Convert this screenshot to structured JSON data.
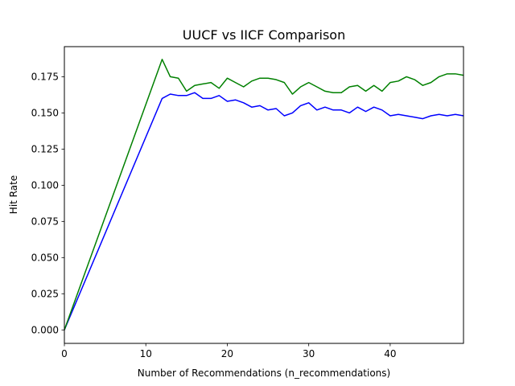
{
  "chart_data": {
    "type": "line",
    "title": "UUCF vs IICF Comparison",
    "xlabel": "Number of Recommendations (n_recommendations)",
    "ylabel": "Hit Rate",
    "xlim": [
      0,
      49
    ],
    "ylim": [
      -0.0093,
      0.1958
    ],
    "x_ticks": [
      0,
      10,
      20,
      30,
      40
    ],
    "x_tick_labels": [
      "0",
      "10",
      "20",
      "30",
      "40"
    ],
    "y_ticks": [
      0,
      0.025,
      0.05,
      0.075,
      0.1,
      0.125,
      0.15,
      0.175
    ],
    "y_tick_labels": [
      "0.000",
      "0.025",
      "0.050",
      "0.075",
      "0.100",
      "0.125",
      "0.150",
      "0.175"
    ],
    "grid": false,
    "legend": "none",
    "x": [
      0,
      12,
      13,
      14,
      15,
      16,
      17,
      18,
      19,
      20,
      21,
      22,
      23,
      24,
      25,
      26,
      27,
      28,
      29,
      30,
      31,
      32,
      33,
      34,
      35,
      36,
      37,
      38,
      39,
      40,
      41,
      42,
      43,
      44,
      45,
      46,
      47,
      48,
      49
    ],
    "series": [
      {
        "color": "#0000ff",
        "values": [
          0.0,
          0.16,
          0.163,
          0.162,
          0.162,
          0.164,
          0.16,
          0.16,
          0.162,
          0.158,
          0.159,
          0.157,
          0.154,
          0.155,
          0.152,
          0.153,
          0.148,
          0.15,
          0.155,
          0.157,
          0.152,
          0.154,
          0.152,
          0.152,
          0.15,
          0.154,
          0.151,
          0.154,
          0.152,
          0.148,
          0.149,
          0.148,
          0.147,
          0.146,
          0.148,
          0.149,
          0.148,
          0.149,
          0.148
        ]
      },
      {
        "color": "#008000",
        "values": [
          0.0,
          0.187,
          0.175,
          0.174,
          0.165,
          0.169,
          0.17,
          0.171,
          0.167,
          0.174,
          0.171,
          0.168,
          0.172,
          0.174,
          0.174,
          0.173,
          0.171,
          0.163,
          0.168,
          0.171,
          0.168,
          0.165,
          0.164,
          0.164,
          0.168,
          0.169,
          0.165,
          0.169,
          0.165,
          0.171,
          0.172,
          0.175,
          0.173,
          0.169,
          0.171,
          0.175,
          0.177,
          0.177,
          0.176
        ]
      }
    ]
  }
}
